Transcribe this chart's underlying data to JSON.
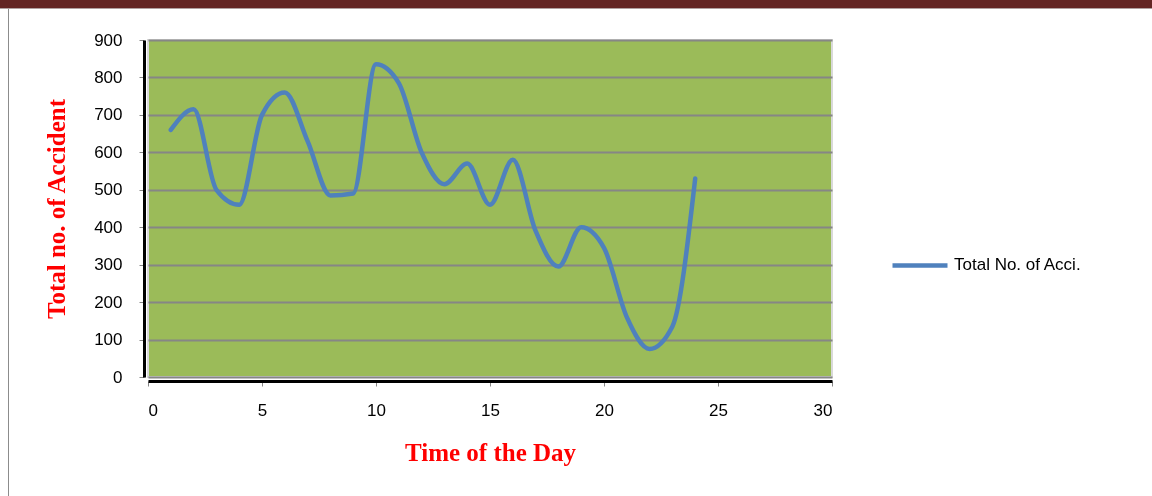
{
  "chart_data": {
    "type": "line",
    "xlabel": "Time of the Day",
    "ylabel": "Total no. of Accident",
    "x": [
      1,
      2,
      3,
      4,
      5,
      6,
      7,
      8,
      9,
      10,
      11,
      12,
      13,
      14,
      15,
      16,
      17,
      18,
      19,
      20,
      21,
      22,
      23,
      24
    ],
    "series": [
      {
        "name": "Total No. of Acci.",
        "color": "#4f81bd",
        "values": [
          660,
          715,
          500,
          460,
          700,
          760,
          630,
          485,
          490,
          835,
          785,
          600,
          515,
          570,
          460,
          580,
          390,
          295,
          400,
          345,
          160,
          75,
          135,
          530
        ]
      }
    ],
    "xlim": [
      0,
      30
    ],
    "xticks": [
      0,
      5,
      10,
      15,
      20,
      25,
      30
    ],
    "ylim": [
      0,
      900
    ],
    "yticks": [
      0,
      100,
      200,
      300,
      400,
      500,
      600,
      700,
      800,
      900
    ],
    "grid": "y",
    "legend": "right"
  }
}
